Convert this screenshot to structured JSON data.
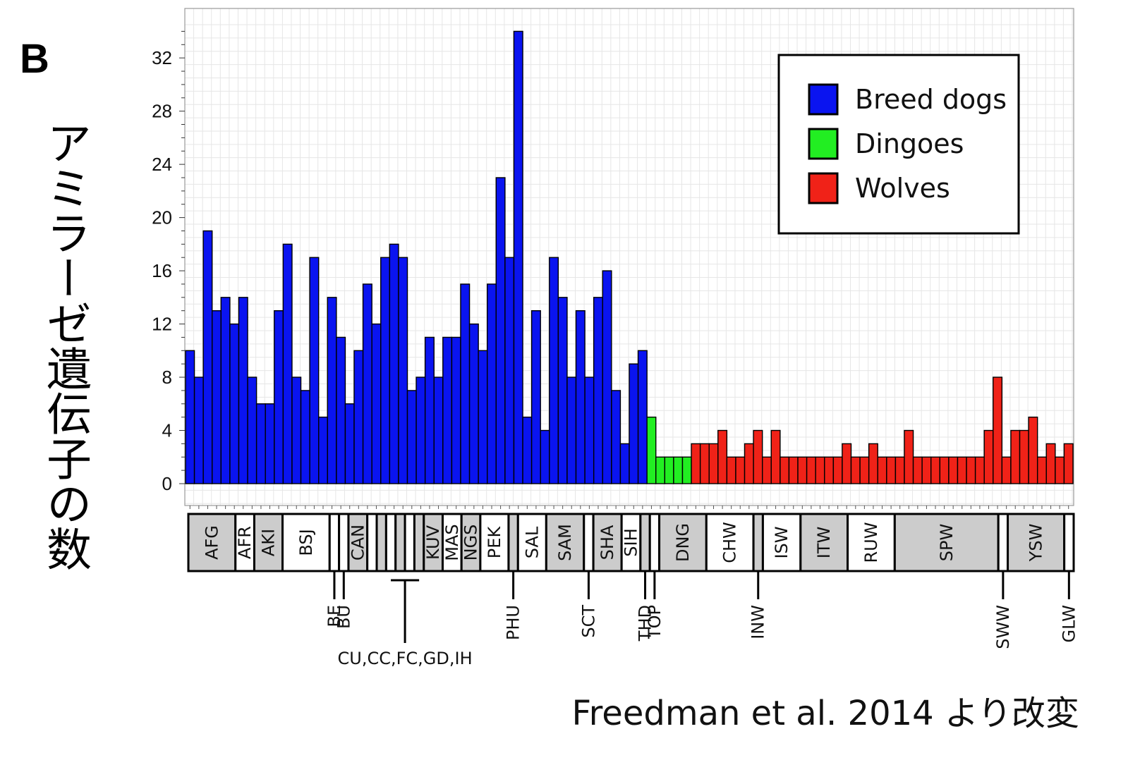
{
  "panel_label": "B",
  "credit": "Freedman et al. 2014 より改変",
  "colors": {
    "Breed dogs": "#0a14f0",
    "Dingoes": "#22ee22",
    "Wolves": "#f02218",
    "shade": "#cccccc"
  },
  "chart_data": {
    "type": "bar",
    "ylabel": "アミラーゼ遺伝子の数",
    "ylim": [
      0,
      34
    ],
    "yticks": [
      0,
      4,
      8,
      12,
      16,
      20,
      24,
      28,
      32
    ],
    "grid": true,
    "legend_placement": "top-right",
    "legend": [
      "Breed dogs",
      "Dingoes",
      "Wolves"
    ],
    "values": [
      10,
      8,
      19,
      13,
      14,
      12,
      14,
      8,
      6,
      6,
      13,
      18,
      8,
      7,
      17,
      5,
      14,
      11,
      6,
      10,
      15,
      12,
      17,
      18,
      17,
      7,
      8,
      11,
      8,
      11,
      11,
      15,
      12,
      10,
      15,
      23,
      17,
      34,
      5,
      13,
      4,
      17,
      14,
      8,
      13,
      8,
      14,
      16,
      7,
      3,
      9,
      10,
      5,
      2,
      2,
      2,
      2,
      3,
      3,
      3,
      4,
      2,
      2,
      3,
      4,
      2,
      4,
      2,
      2,
      2,
      2,
      2,
      2,
      2,
      3,
      2,
      2,
      3,
      2,
      2,
      2,
      4,
      2,
      2,
      2,
      2,
      2,
      2,
      2,
      2,
      4,
      8,
      2,
      4,
      4,
      5,
      2,
      3,
      2,
      3
    ],
    "groups": [
      {
        "name": "Breed dogs",
        "from": 0,
        "to": 51
      },
      {
        "name": "Dingoes",
        "from": 52,
        "to": 56
      },
      {
        "name": "Wolves",
        "from": 57,
        "to": 99
      }
    ],
    "breed_boxes": [
      {
        "label": "AFG",
        "from": 0,
        "to": 4,
        "shaded": true
      },
      {
        "label": "AFR",
        "from": 5,
        "to": 6,
        "shaded": false
      },
      {
        "label": "AKI",
        "from": 7,
        "to": 9,
        "shaded": true
      },
      {
        "label": "BSJ",
        "from": 10,
        "to": 14,
        "shaded": false
      },
      {
        "label": "",
        "from": 15,
        "to": 15,
        "shaded": false
      },
      {
        "label": "",
        "from": 16,
        "to": 16,
        "shaded": false
      },
      {
        "label": "CAN",
        "from": 17,
        "to": 18,
        "shaded": true
      },
      {
        "label": "",
        "from": 19,
        "to": 19,
        "shaded": false
      },
      {
        "label": "",
        "from": 20,
        "to": 20,
        "shaded": true
      },
      {
        "label": "",
        "from": 21,
        "to": 21,
        "shaded": false
      },
      {
        "label": "",
        "from": 22,
        "to": 22,
        "shaded": true
      },
      {
        "label": "",
        "from": 23,
        "to": 23,
        "shaded": false
      },
      {
        "label": "",
        "from": 24,
        "to": 24,
        "shaded": true
      },
      {
        "label": "KUV",
        "from": 25,
        "to": 26,
        "shaded": true
      },
      {
        "label": "MAS",
        "from": 27,
        "to": 28,
        "shaded": false
      },
      {
        "label": "NGS",
        "from": 29,
        "to": 30,
        "shaded": true
      },
      {
        "label": "PEK",
        "from": 31,
        "to": 33,
        "shaded": false
      },
      {
        "label": "",
        "from": 34,
        "to": 34,
        "shaded": true
      },
      {
        "label": "SAL",
        "from": 35,
        "to": 37,
        "shaded": false
      },
      {
        "label": "SAM",
        "from": 38,
        "to": 41,
        "shaded": true
      },
      {
        "label": "",
        "from": 42,
        "to": 42,
        "shaded": false
      },
      {
        "label": "SHA",
        "from": 43,
        "to": 45,
        "shaded": true
      },
      {
        "label": "SIH",
        "from": 46,
        "to": 47,
        "shaded": false
      },
      {
        "label": "",
        "from": 48,
        "to": 48,
        "shaded": true
      },
      {
        "label": "",
        "from": 49,
        "to": 49,
        "shaded": false
      },
      {
        "label": "DNG",
        "from": 50,
        "to": 54,
        "shaded": true
      },
      {
        "label": "CHW",
        "from": 55,
        "to": 59,
        "shaded": false
      },
      {
        "label": "",
        "from": 60,
        "to": 60,
        "shaded": true
      },
      {
        "label": "ISW",
        "from": 61,
        "to": 64,
        "shaded": false
      },
      {
        "label": "ITW",
        "from": 65,
        "to": 69,
        "shaded": true
      },
      {
        "label": "RUW",
        "from": 70,
        "to": 74,
        "shaded": false
      },
      {
        "label": "SPW",
        "from": 75,
        "to": 85,
        "shaded": true
      },
      {
        "label": "",
        "from": 86,
        "to": 86,
        "shaded": false
      },
      {
        "label": "YSW",
        "from": 87,
        "to": 92,
        "shaded": true
      },
      {
        "label": "",
        "from": 93,
        "to": 93,
        "shaded": false
      }
    ],
    "callouts": [
      {
        "label": "BE",
        "box": 4
      },
      {
        "label": "BU",
        "box": 5
      },
      {
        "label": "CU,CC,FC,GD,IH",
        "box_from": 9,
        "box_to": 12,
        "bracket": true
      },
      {
        "label": "PHU",
        "box": 17
      },
      {
        "label": "SCT",
        "box": 20
      },
      {
        "label": "THD",
        "box": 23
      },
      {
        "label": "TOP",
        "box": 24
      },
      {
        "label": "INW",
        "box": 27
      },
      {
        "label": "SWW",
        "box": 32
      },
      {
        "label": "GLW",
        "box": 34
      }
    ]
  }
}
